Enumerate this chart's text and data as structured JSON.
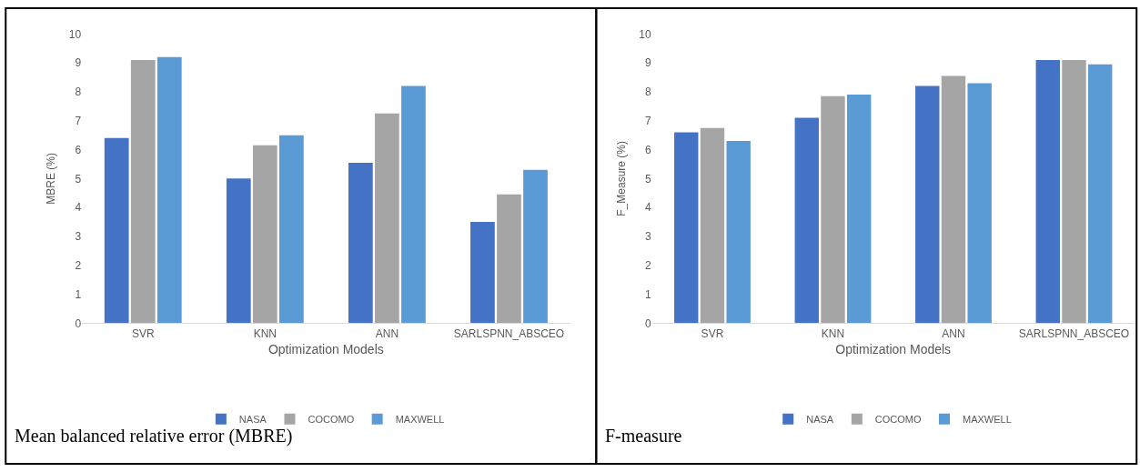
{
  "chart_data": [
    {
      "type": "bar",
      "xlabel": "Optimization Models",
      "ylabel": "MBRE (%)",
      "categories": [
        "SVR",
        "KNN",
        "ANN",
        "SARLSPNN_ABSCEO"
      ],
      "series": [
        {
          "name": "NASA",
          "color": "#4472c4",
          "values": [
            6.4,
            5.0,
            5.55,
            3.5
          ]
        },
        {
          "name": "COCOMO",
          "color": "#a5a5a5",
          "values": [
            9.1,
            6.15,
            7.25,
            4.45
          ]
        },
        {
          "name": "MAXWELL",
          "color": "#5b9bd5",
          "values": [
            9.2,
            6.5,
            8.2,
            5.3
          ]
        }
      ],
      "ylim": [
        0,
        10
      ],
      "yticks": [
        0,
        1,
        2,
        3,
        4,
        5,
        6,
        7,
        8,
        9,
        10
      ],
      "grid": false,
      "legend": "bottom",
      "annotations": [
        "Mean balanced relative error (MBRE)"
      ]
    },
    {
      "type": "bar",
      "xlabel": "Optimization Models",
      "ylabel": "F_Measure (%)",
      "categories": [
        "SVR",
        "KNN",
        "ANN",
        "SARLSPNN_ABSCEO"
      ],
      "series": [
        {
          "name": "NASA",
          "color": "#4472c4",
          "values": [
            6.6,
            7.1,
            8.2,
            9.1
          ]
        },
        {
          "name": "COCOMO",
          "color": "#a5a5a5",
          "values": [
            6.75,
            7.85,
            8.55,
            9.1
          ]
        },
        {
          "name": "MAXWELL",
          "color": "#5b9bd5",
          "values": [
            6.3,
            7.9,
            8.3,
            8.95
          ]
        }
      ],
      "ylim": [
        0,
        10
      ],
      "yticks": [
        0,
        1,
        2,
        3,
        4,
        5,
        6,
        7,
        8,
        9,
        10
      ],
      "grid": false,
      "legend": "bottom",
      "annotations": [
        "F-measure"
      ]
    }
  ]
}
